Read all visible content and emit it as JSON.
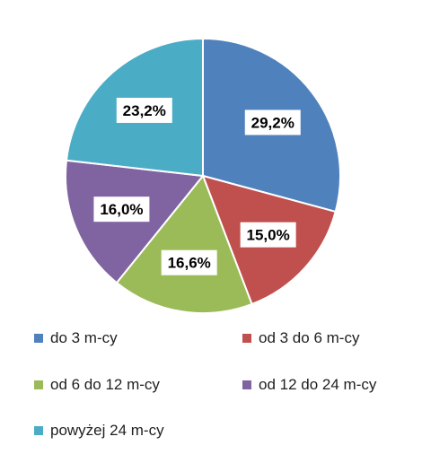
{
  "chart_data": {
    "type": "pie",
    "title": "",
    "legend_position": "bottom",
    "start_angle_deg": 0,
    "direction": "clockwise",
    "slices": [
      {
        "label": "do 3 m-cy",
        "value": 29.2,
        "value_label": "29,2%",
        "color": "#4f81bd"
      },
      {
        "label": "od 3 do 6 m-cy",
        "value": 15.0,
        "value_label": "15,0%",
        "color": "#c0504d"
      },
      {
        "label": "od 6 do 12 m-cy",
        "value": 16.6,
        "value_label": "16,6%",
        "color": "#9bbb59"
      },
      {
        "label": "od 12 do 24 m-cy",
        "value": 16.0,
        "value_label": "16,0%",
        "color": "#8064a2"
      },
      {
        "label": "powyżej 24 m-cy",
        "value": 23.2,
        "value_label": "23,2%",
        "color": "#4bacc6"
      }
    ]
  }
}
